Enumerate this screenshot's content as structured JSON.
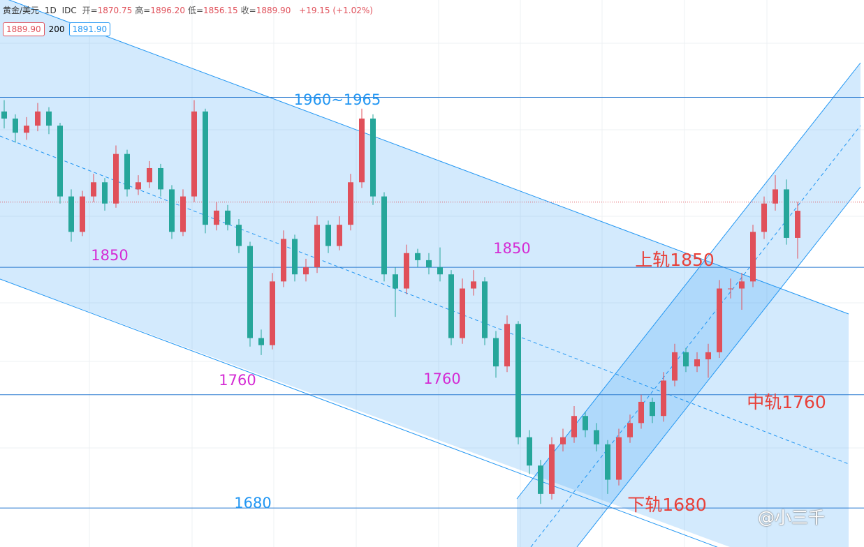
{
  "header": {
    "symbol": "黄金/美元",
    "interval": "1D",
    "source": "IDC",
    "ohlc": [
      {
        "label": "开=",
        "value": "1870.75"
      },
      {
        "label": "高=",
        "value": "1896.20"
      },
      {
        "label": "低=",
        "value": "1856.15"
      },
      {
        "label": "收=",
        "value": "1889.90"
      }
    ],
    "change": "+19.15 (+1.02%)",
    "bid": "1889.90",
    "spread": "200",
    "ask": "1891.90"
  },
  "watermark": "@小三千",
  "chart_data": {
    "type": "candlestick",
    "ylim": [
      1652.5,
      2038.7
    ],
    "up_color": "#e0505a",
    "down_color": "#26a69a",
    "levels": [
      1970,
      1850,
      1760,
      1680
    ],
    "level_color": "#2b7bd0",
    "price_line": 1896,
    "annotations": [
      {
        "text": "1960~1965",
        "color": "#2196f3"
      },
      {
        "text": "1850",
        "color": "#d42bd4"
      },
      {
        "text": "1850",
        "color": "#d42bd4"
      },
      {
        "text": "1760",
        "color": "#d42bd4"
      },
      {
        "text": "1760",
        "color": "#d42bd4"
      },
      {
        "text": "1680",
        "color": "#2196f3"
      },
      {
        "text": "上轨1850",
        "color": "#e8413a"
      },
      {
        "text": "中轨1760",
        "color": "#e8413a"
      },
      {
        "text": "下轨1680",
        "color": "#e8413a"
      }
    ],
    "candles": [
      [
        1960,
        1968,
        1948,
        1955
      ],
      [
        1955,
        1958,
        1938,
        1945
      ],
      [
        1945,
        1956,
        1940,
        1950
      ],
      [
        1950,
        1966,
        1946,
        1960
      ],
      [
        1960,
        1963,
        1944,
        1950
      ],
      [
        1950,
        1952,
        1895,
        1900
      ],
      [
        1900,
        1905,
        1868,
        1875
      ],
      [
        1875,
        1904,
        1872,
        1900
      ],
      [
        1900,
        1916,
        1896,
        1910
      ],
      [
        1910,
        1913,
        1890,
        1895
      ],
      [
        1895,
        1936,
        1892,
        1930
      ],
      [
        1930,
        1933,
        1900,
        1905
      ],
      [
        1905,
        1915,
        1901,
        1910
      ],
      [
        1910,
        1925,
        1906,
        1920
      ],
      [
        1920,
        1923,
        1900,
        1905
      ],
      [
        1905,
        1908,
        1870,
        1875
      ],
      [
        1875,
        1905,
        1872,
        1900
      ],
      [
        1900,
        1968,
        1896,
        1960
      ],
      [
        1960,
        1962,
        1874,
        1880
      ],
      [
        1880,
        1896,
        1876,
        1890
      ],
      [
        1890,
        1894,
        1876,
        1880
      ],
      [
        1880,
        1884,
        1860,
        1865
      ],
      [
        1865,
        1868,
        1794,
        1800
      ],
      [
        1800,
        1806,
        1788,
        1795
      ],
      [
        1795,
        1846,
        1792,
        1840
      ],
      [
        1840,
        1876,
        1836,
        1870
      ],
      [
        1870,
        1873,
        1840,
        1845
      ],
      [
        1845,
        1856,
        1840,
        1850
      ],
      [
        1850,
        1886,
        1846,
        1880
      ],
      [
        1880,
        1883,
        1860,
        1865
      ],
      [
        1865,
        1886,
        1862,
        1880
      ],
      [
        1880,
        1916,
        1876,
        1910
      ],
      [
        1910,
        1962,
        1906,
        1955
      ],
      [
        1955,
        1958,
        1894,
        1900
      ],
      [
        1900,
        1903,
        1840,
        1845
      ],
      [
        1845,
        1850,
        1815,
        1835
      ],
      [
        1835,
        1866,
        1831,
        1860
      ],
      [
        1860,
        1863,
        1850,
        1855
      ],
      [
        1855,
        1860,
        1845,
        1850
      ],
      [
        1850,
        1864,
        1840,
        1845
      ],
      [
        1845,
        1848,
        1795,
        1800
      ],
      [
        1800,
        1842,
        1796,
        1835
      ],
      [
        1835,
        1848,
        1830,
        1840
      ],
      [
        1840,
        1843,
        1795,
        1800
      ],
      [
        1800,
        1805,
        1772,
        1780
      ],
      [
        1780,
        1816,
        1776,
        1810
      ],
      [
        1810,
        1812,
        1725,
        1730
      ],
      [
        1730,
        1735,
        1704,
        1710
      ],
      [
        1710,
        1714,
        1683,
        1690
      ],
      [
        1690,
        1730,
        1686,
        1725
      ],
      [
        1725,
        1736,
        1720,
        1730
      ],
      [
        1730,
        1752,
        1726,
        1745
      ],
      [
        1745,
        1748,
        1730,
        1735
      ],
      [
        1735,
        1740,
        1720,
        1725
      ],
      [
        1725,
        1728,
        1690,
        1700
      ],
      [
        1700,
        1736,
        1696,
        1730
      ],
      [
        1730,
        1746,
        1726,
        1740
      ],
      [
        1740,
        1760,
        1736,
        1755
      ],
      [
        1755,
        1758,
        1740,
        1745
      ],
      [
        1745,
        1776,
        1741,
        1770
      ],
      [
        1770,
        1796,
        1766,
        1790
      ],
      [
        1790,
        1793,
        1776,
        1780
      ],
      [
        1780,
        1790,
        1776,
        1785
      ],
      [
        1785,
        1796,
        1772,
        1790
      ],
      [
        1790,
        1841,
        1786,
        1835
      ],
      [
        1835,
        1842,
        1828,
        1835
      ],
      [
        1835,
        1846,
        1820,
        1840
      ],
      [
        1840,
        1880,
        1836,
        1875
      ],
      [
        1875,
        1900,
        1870,
        1895
      ],
      [
        1895,
        1915,
        1890,
        1905
      ],
      [
        1905,
        1912,
        1866,
        1870.75
      ],
      [
        1870.75,
        1896.2,
        1856.15,
        1889.9
      ]
    ]
  }
}
